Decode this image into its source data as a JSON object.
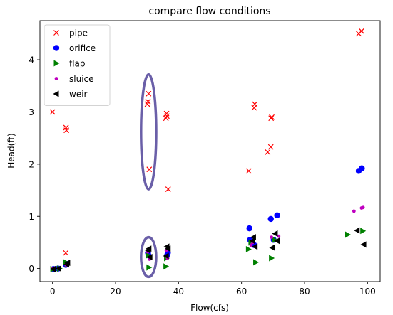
{
  "chart_data": {
    "type": "scatter",
    "title": "compare flow conditions",
    "xlabel": "Flow(cfs)",
    "ylabel": "Head(ft)",
    "xlim": [
      -4,
      104
    ],
    "ylim": [
      -0.25,
      4.75
    ],
    "xticks": [
      0,
      20,
      40,
      60,
      80,
      100
    ],
    "yticks": [
      0,
      1,
      2,
      3,
      4
    ],
    "grid": false,
    "legend_position": "top-left",
    "series": [
      {
        "name": "pipe",
        "marker": "x",
        "color": "#ff0000",
        "points": [
          [
            0,
            3.0
          ],
          [
            4.3,
            2.7
          ],
          [
            4.4,
            2.65
          ],
          [
            4.2,
            0.3
          ],
          [
            30.5,
            3.35
          ],
          [
            30.1,
            3.15
          ],
          [
            30.3,
            3.2
          ],
          [
            30.7,
            1.9
          ],
          [
            36.2,
            2.97
          ],
          [
            36.0,
            2.88
          ],
          [
            36.3,
            2.92
          ],
          [
            36.7,
            1.52
          ],
          [
            64.2,
            3.15
          ],
          [
            64.0,
            3.08
          ],
          [
            62.3,
            1.87
          ],
          [
            69.6,
            2.9
          ],
          [
            69.4,
            2.88
          ],
          [
            68.3,
            2.23
          ],
          [
            69.3,
            2.33
          ],
          [
            97.2,
            4.5
          ],
          [
            98.1,
            4.55
          ]
        ]
      },
      {
        "name": "orifice",
        "marker": "circle",
        "color": "#0000ff",
        "points": [
          [
            0.3,
            -0.01
          ],
          [
            1.8,
            0.0
          ],
          [
            4.2,
            0.07
          ],
          [
            4.4,
            0.09
          ],
          [
            30.3,
            0.3
          ],
          [
            30.5,
            0.25
          ],
          [
            36.4,
            0.26
          ],
          [
            36.6,
            0.3
          ],
          [
            62.5,
            0.77
          ],
          [
            62.7,
            0.55
          ],
          [
            64.0,
            0.45
          ],
          [
            69.3,
            0.95
          ],
          [
            71.3,
            1.02
          ],
          [
            70.2,
            0.55
          ],
          [
            97.2,
            1.87
          ],
          [
            98.2,
            1.92
          ]
        ]
      },
      {
        "name": "flap",
        "marker": "triangle-right",
        "color": "#008000",
        "points": [
          [
            0.1,
            -0.01
          ],
          [
            2.2,
            0.0
          ],
          [
            4.2,
            0.12
          ],
          [
            4.6,
            0.08
          ],
          [
            30.4,
            0.25
          ],
          [
            30.6,
            0.02
          ],
          [
            36.0,
            0.04
          ],
          [
            36.2,
            0.2
          ],
          [
            62.2,
            0.37
          ],
          [
            63.0,
            0.5
          ],
          [
            64.5,
            0.12
          ],
          [
            69.5,
            0.2
          ],
          [
            70.5,
            0.55
          ],
          [
            93.7,
            0.65
          ],
          [
            98.5,
            0.72
          ]
        ]
      },
      {
        "name": "sluice",
        "marker": "dot",
        "color": "#bf00bf",
        "points": [
          [
            0.1,
            0.0
          ],
          [
            2.0,
            0.0
          ],
          [
            4.3,
            0.07
          ],
          [
            30.2,
            0.32
          ],
          [
            30.8,
            0.18
          ],
          [
            36.1,
            0.35
          ],
          [
            36.5,
            0.2
          ],
          [
            63.0,
            0.45
          ],
          [
            63.6,
            0.5
          ],
          [
            69.5,
            0.6
          ],
          [
            71.8,
            0.62
          ],
          [
            95.7,
            1.1
          ],
          [
            98.1,
            1.16
          ],
          [
            98.6,
            1.17
          ]
        ]
      },
      {
        "name": "weir",
        "marker": "triangle-left",
        "color": "#000000",
        "points": [
          [
            0.2,
            -0.01
          ],
          [
            2.0,
            0.0
          ],
          [
            4.5,
            0.08
          ],
          [
            4.8,
            0.11
          ],
          [
            30.3,
            0.35
          ],
          [
            30.6,
            0.38
          ],
          [
            30.9,
            0.22
          ],
          [
            36.3,
            0.42
          ],
          [
            36.7,
            0.38
          ],
          [
            36.1,
            0.24
          ],
          [
            63.8,
            0.6
          ],
          [
            63.5,
            0.53
          ],
          [
            64.3,
            0.42
          ],
          [
            70.7,
            0.67
          ],
          [
            71.3,
            0.53
          ],
          [
            69.8,
            0.4
          ],
          [
            96.7,
            0.73
          ],
          [
            98.8,
            0.46
          ]
        ]
      }
    ],
    "annotations": [
      {
        "shape": "ellipse",
        "color": "#6a5fa8",
        "center": [
          30.5,
          2.62
        ],
        "radius": [
          2.4,
          1.1
        ]
      },
      {
        "shape": "ellipse",
        "color": "#6a5fa8",
        "center": [
          30.5,
          0.22
        ],
        "radius": [
          2.4,
          0.38
        ]
      }
    ]
  }
}
